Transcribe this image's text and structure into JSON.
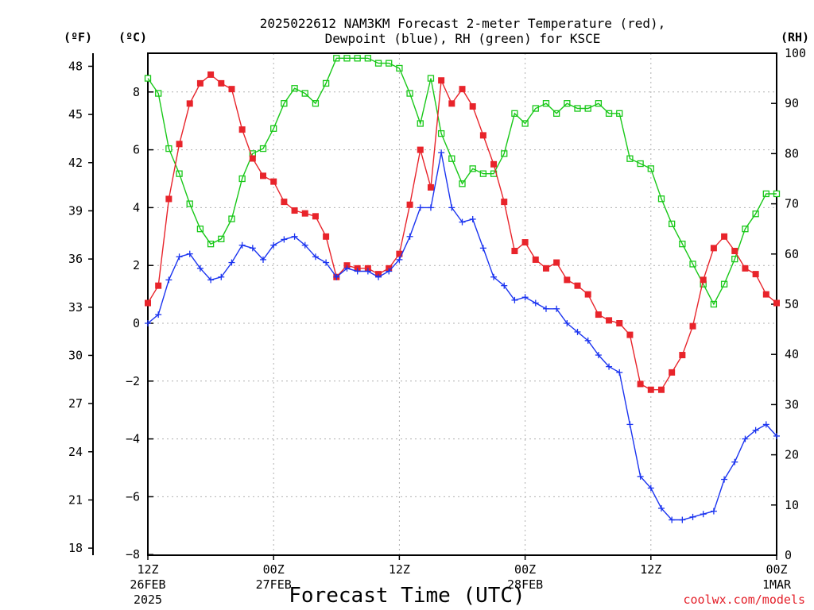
{
  "chart_data": {
    "type": "line",
    "title_line1": "2025022612 NAM3KM Forecast 2-meter Temperature (red),",
    "title_line2": "Dewpoint (blue), RH (green) for KSCE",
    "xlabel": "Forecast Time (UTC)",
    "left_unit_f": "(ºF)",
    "left_unit_c": "(ºC)",
    "right_unit": "(RH)",
    "credit": "coolwx.com/models",
    "f_ticks": [
      "18",
      "21",
      "24",
      "27",
      "30",
      "33",
      "36",
      "39",
      "42",
      "45",
      "48"
    ],
    "c_ticks": [
      "−8",
      "−6",
      "−4",
      "−2",
      "0",
      "2",
      "4",
      "6",
      "8"
    ],
    "rh_ticks": [
      "0",
      "10",
      "20",
      "30",
      "40",
      "50",
      "60",
      "70",
      "80",
      "90",
      "100"
    ],
    "x_ticks": [
      {
        "h": 0,
        "l1": "12Z",
        "l2": "26FEB",
        "l3": "2025"
      },
      {
        "h": 12,
        "l1": "00Z",
        "l2": "27FEB",
        "l3": ""
      },
      {
        "h": 24,
        "l1": "12Z",
        "l2": "",
        "l3": ""
      },
      {
        "h": 36,
        "l1": "00Z",
        "l2": "28FEB",
        "l3": ""
      },
      {
        "h": 48,
        "l1": "12Z",
        "l2": "",
        "l3": ""
      },
      {
        "h": 60,
        "l1": "00Z",
        "l2": "1MAR",
        "l3": ""
      }
    ],
    "hours": [
      0,
      1,
      2,
      3,
      4,
      5,
      6,
      7,
      8,
      9,
      10,
      11,
      12,
      13,
      14,
      15,
      16,
      17,
      18,
      19,
      20,
      21,
      22,
      23,
      24,
      25,
      26,
      27,
      28,
      29,
      30,
      31,
      32,
      33,
      34,
      35,
      36,
      37,
      38,
      39,
      40,
      41,
      42,
      43,
      44,
      45,
      46,
      47,
      48,
      49,
      50,
      51,
      52,
      53,
      54,
      55,
      56,
      57,
      58,
      59,
      60
    ],
    "temperature_c": [
      0.7,
      1.3,
      4.3,
      6.2,
      7.6,
      8.3,
      8.6,
      8.3,
      8.1,
      6.7,
      5.7,
      5.1,
      4.9,
      4.2,
      3.9,
      3.8,
      3.7,
      3.0,
      1.6,
      2.0,
      1.9,
      1.9,
      1.7,
      1.9,
      2.4,
      4.1,
      6.0,
      4.7,
      8.4,
      7.6,
      8.1,
      7.5,
      6.5,
      5.5,
      4.2,
      2.5,
      2.8,
      2.2,
      1.9,
      2.1,
      1.5,
      1.3,
      1.0,
      0.3,
      0.1,
      0.0,
      -0.4,
      -2.1,
      -2.3,
      -2.3,
      -1.7,
      -1.1,
      -0.1,
      1.5,
      2.6,
      3.0,
      2.5,
      1.9,
      1.7,
      1.0,
      0.7
    ],
    "dewpoint_c": [
      0.0,
      0.3,
      1.5,
      2.3,
      2.4,
      1.9,
      1.5,
      1.6,
      2.1,
      2.7,
      2.6,
      2.2,
      2.7,
      2.9,
      3.0,
      2.7,
      2.3,
      2.1,
      1.6,
      1.9,
      1.8,
      1.8,
      1.6,
      1.8,
      2.2,
      3.0,
      4.0,
      4.0,
      5.9,
      4.0,
      3.5,
      3.6,
      2.6,
      1.6,
      1.3,
      0.8,
      0.9,
      0.7,
      0.5,
      0.5,
      0.0,
      -0.3,
      -0.6,
      -1.1,
      -1.5,
      -1.7,
      -3.5,
      -5.3,
      -5.7,
      -6.4,
      -6.8,
      -6.8,
      -6.7,
      -6.6,
      -6.5,
      -5.4,
      -4.8,
      -4.0,
      -3.7,
      -3.5,
      -3.9
    ],
    "rh_percent": [
      95,
      92,
      81,
      76,
      70,
      65,
      62,
      63,
      67,
      75,
      80,
      81,
      85,
      90,
      93,
      92,
      90,
      94,
      99,
      99,
      99,
      99,
      98,
      98,
      97,
      92,
      86,
      95,
      84,
      79,
      74,
      77,
      76,
      76,
      80,
      88,
      86,
      89,
      90,
      88,
      90,
      89,
      89,
      90,
      88,
      88,
      79,
      78,
      77,
      71,
      66,
      62,
      58,
      54,
      50,
      54,
      59,
      65,
      68,
      72,
      72
    ],
    "axes": {
      "f_range": [
        17.6,
        49.6
      ],
      "c_range": [
        -8,
        9
      ],
      "rh_range": [
        0,
        100
      ],
      "hours_range": [
        0,
        60
      ]
    },
    "colors": {
      "temperature": "#e8242b",
      "dewpoint": "#1b34f0",
      "rh": "#18c818",
      "credit": "#e4202a",
      "grid": "#b0b0b0"
    },
    "grid": true
  }
}
